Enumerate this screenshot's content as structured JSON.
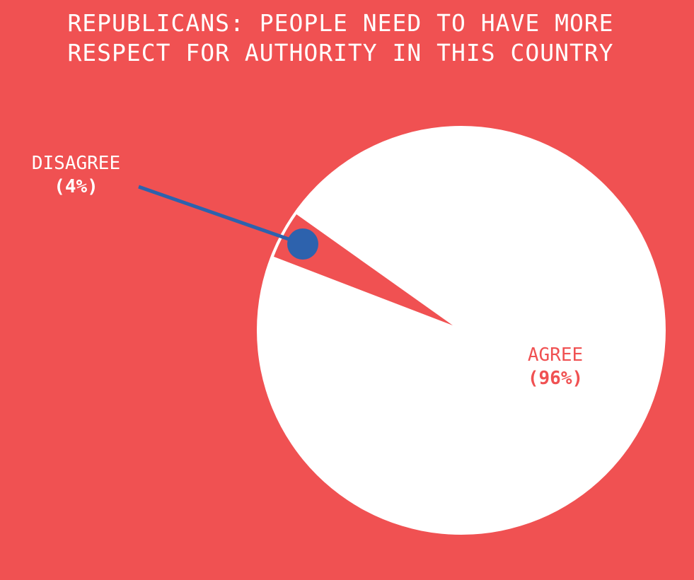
{
  "chart_data": {
    "type": "pie",
    "title": [
      "REPUBLICANS: PEOPLE NEED TO HAVE MORE",
      "RESPECT FOR AUTHORITY IN THIS COUNTRY"
    ],
    "slices": [
      {
        "label": "AGREE",
        "value": 96,
        "value_label": "(96%)",
        "color": "#ffffff"
      },
      {
        "label": "DISAGREE",
        "value": 4,
        "value_label": "(4%)",
        "color": "#f05152"
      }
    ],
    "exploded": "DISAGREE",
    "background": "#f05152",
    "callout_color": "#2d62ad"
  }
}
